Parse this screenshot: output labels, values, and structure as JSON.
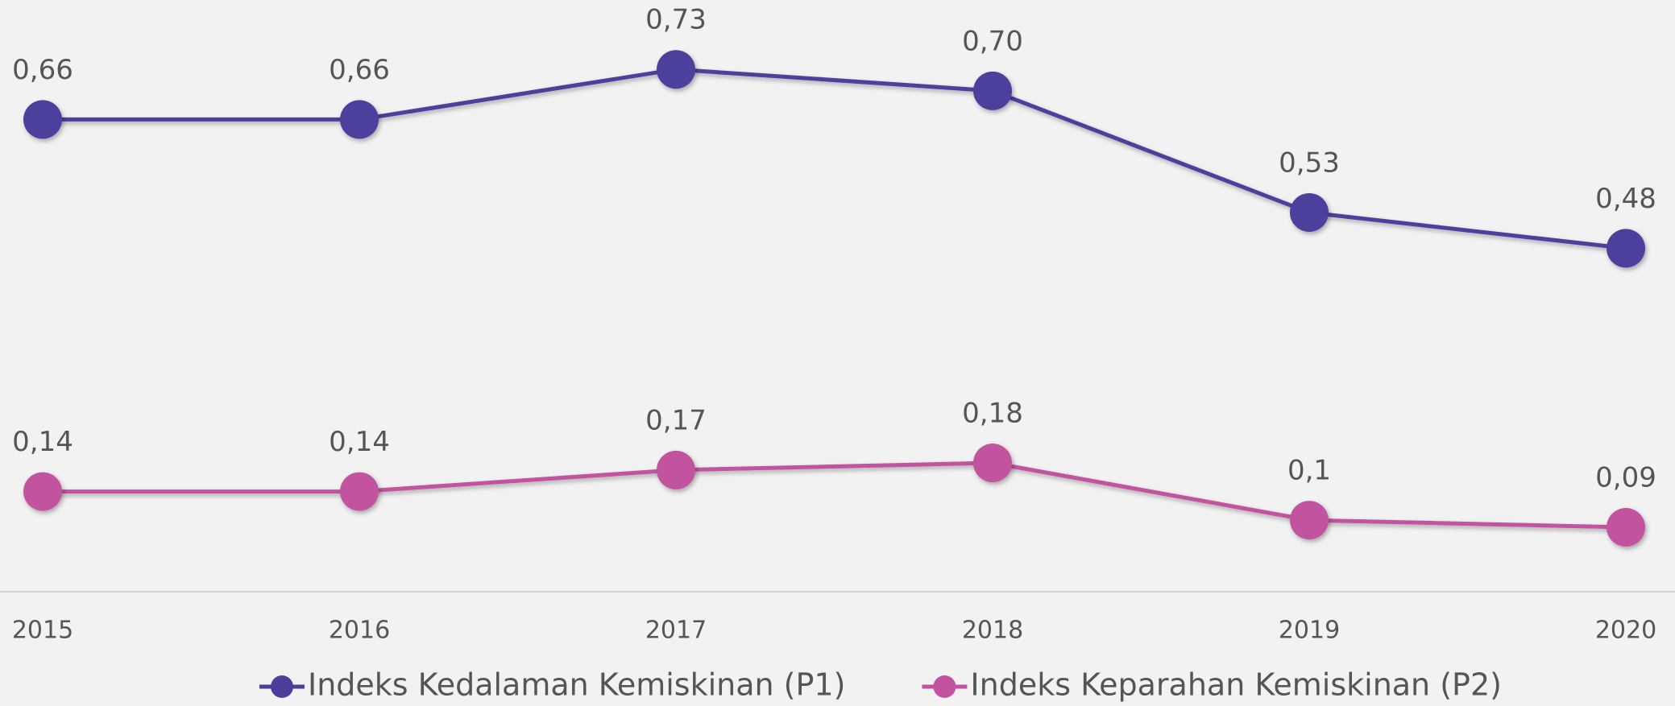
{
  "chart_data": {
    "type": "line",
    "categories": [
      "2015",
      "2016",
      "2017",
      "2018",
      "2019",
      "2020"
    ],
    "series": [
      {
        "name": "Indeks Kedalaman Kemiskinan (P1)",
        "color": "#4b3f9b",
        "values": [
          0.66,
          0.66,
          0.73,
          0.7,
          0.53,
          0.48
        ],
        "value_labels": [
          "0,66",
          "0,66",
          "0,73",
          "0,70",
          "0,53",
          "0,48"
        ]
      },
      {
        "name": "Indeks Keparahan Kemiskinan (P2)",
        "color": "#c2529f",
        "values": [
          0.14,
          0.14,
          0.17,
          0.18,
          0.1,
          0.09
        ],
        "value_labels": [
          "0,14",
          "0,14",
          "0,17",
          "0,18",
          "0,1",
          "0,09"
        ]
      }
    ],
    "ylim": [
      0,
      0.8
    ],
    "legend": "bottom"
  }
}
